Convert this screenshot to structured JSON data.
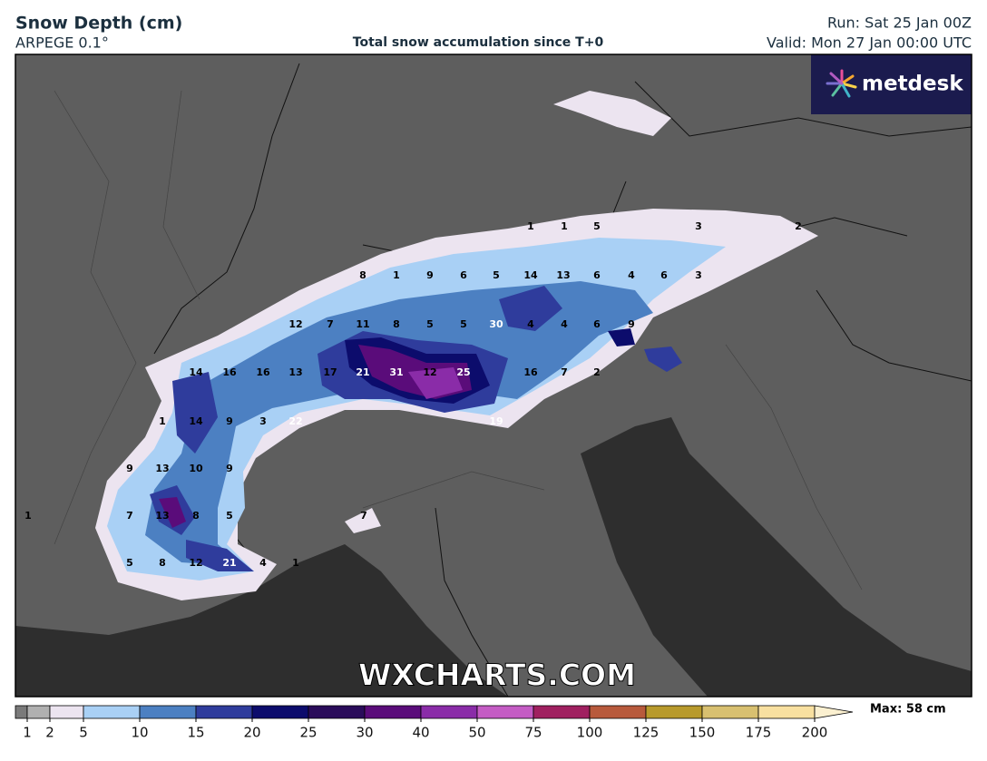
{
  "header": {
    "title": "Snow Depth (cm)",
    "model": "ARPEGE 0.1°",
    "subtitle": "Total snow accumulation since T+0",
    "run": "Run: Sat 25 Jan 00Z",
    "valid": "Valid: Mon 27 Jan 00:00 UTC"
  },
  "logo": "metdesk",
  "watermark": "WXCHARTS.COM",
  "map_labels": [
    {
      "value": 1,
      "color": "#000000"
    },
    {
      "value": 1,
      "color": "#000000"
    },
    {
      "value": 5,
      "color": "#000000"
    },
    {
      "value": 3,
      "color": "#000000"
    },
    {
      "value": 2,
      "color": "#000000"
    },
    {
      "value": 8,
      "color": "#000000"
    },
    {
      "value": 1,
      "color": "#000000"
    },
    {
      "value": 9,
      "color": "#000000"
    },
    {
      "value": 6,
      "color": "#000000"
    },
    {
      "value": 5,
      "color": "#000000"
    },
    {
      "value": 14,
      "color": "#000000"
    },
    {
      "value": 13,
      "color": "#000000"
    },
    {
      "value": 6,
      "color": "#000000"
    },
    {
      "value": 4,
      "color": "#000000"
    },
    {
      "value": 6,
      "color": "#000000"
    },
    {
      "value": 3,
      "color": "#000000"
    },
    {
      "value": 12,
      "color": "#000000"
    },
    {
      "value": 7,
      "color": "#000000"
    },
    {
      "value": 11,
      "color": "#000000"
    },
    {
      "value": 8,
      "color": "#000000"
    },
    {
      "value": 5,
      "color": "#000000"
    },
    {
      "value": 5,
      "color": "#000000"
    },
    {
      "value": 30,
      "color": "#ffffff"
    },
    {
      "value": 4,
      "color": "#000000"
    },
    {
      "value": 4,
      "color": "#000000"
    },
    {
      "value": 6,
      "color": "#000000"
    },
    {
      "value": 9,
      "color": "#000000"
    },
    {
      "value": 14,
      "color": "#000000"
    },
    {
      "value": 16,
      "color": "#000000"
    },
    {
      "value": 16,
      "color": "#000000"
    },
    {
      "value": 13,
      "color": "#000000"
    },
    {
      "value": 17,
      "color": "#000000"
    },
    {
      "value": 21,
      "color": "#ffffff"
    },
    {
      "value": 31,
      "color": "#ffffff"
    },
    {
      "value": 12,
      "color": "#000000"
    },
    {
      "value": 25,
      "color": "#ffffff"
    },
    {
      "value": 16,
      "color": "#000000"
    },
    {
      "value": 7,
      "color": "#000000"
    },
    {
      "value": 2,
      "color": "#000000"
    },
    {
      "value": 1,
      "color": "#000000"
    },
    {
      "value": 14,
      "color": "#000000"
    },
    {
      "value": 9,
      "color": "#000000"
    },
    {
      "value": 3,
      "color": "#000000"
    },
    {
      "value": 22,
      "color": "#ffffff"
    },
    {
      "value": 19,
      "color": "#ffffff"
    },
    {
      "value": 9,
      "color": "#000000"
    },
    {
      "value": 13,
      "color": "#000000"
    },
    {
      "value": 10,
      "color": "#000000"
    },
    {
      "value": 9,
      "color": "#000000"
    },
    {
      "value": 1,
      "color": "#000000"
    },
    {
      "value": 7,
      "color": "#000000"
    },
    {
      "value": 13,
      "color": "#000000"
    },
    {
      "value": 8,
      "color": "#000000"
    },
    {
      "value": 5,
      "color": "#000000"
    },
    {
      "value": 7,
      "color": "#000000"
    },
    {
      "value": 5,
      "color": "#000000"
    },
    {
      "value": 8,
      "color": "#000000"
    },
    {
      "value": 12,
      "color": "#000000"
    },
    {
      "value": 21,
      "color": "#ffffff"
    },
    {
      "value": 4,
      "color": "#000000"
    },
    {
      "value": 1,
      "color": "#000000"
    }
  ],
  "colorbar": {
    "ticks": [
      1,
      2,
      5,
      10,
      15,
      20,
      25,
      30,
      40,
      50,
      75,
      100,
      125,
      150,
      175,
      200
    ],
    "colors": [
      "#7a7a7a",
      "#b0b0b0",
      "#ece4f0",
      "#a9d0f5",
      "#4c80c2",
      "#2f3c9c",
      "#0c0c6c",
      "#2a0c5a",
      "#5a0c7a",
      "#8a2ca8",
      "#c45cc4",
      "#a02060",
      "#b85a3c",
      "#b89a2c",
      "#d8c070",
      "#f8e0a0",
      "#fbf0d0"
    ],
    "max_label": "Max: 58 cm"
  }
}
